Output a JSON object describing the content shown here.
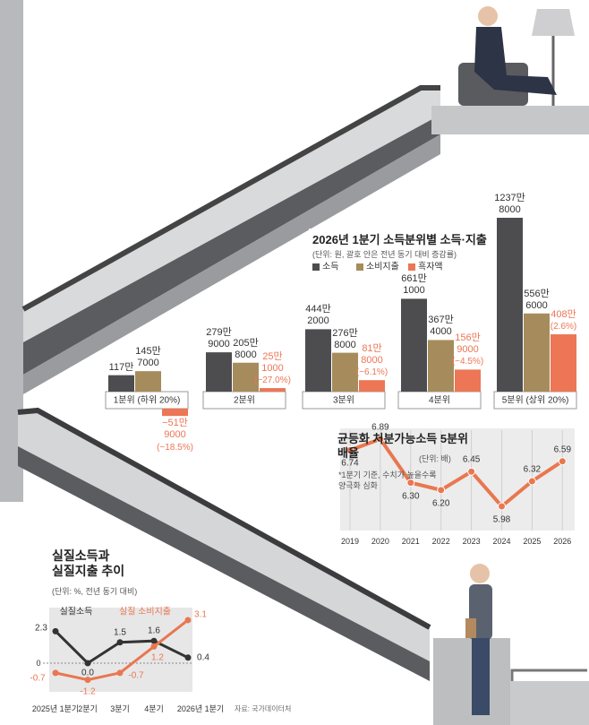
{
  "chart_data": [
    {
      "type": "bar",
      "title": "2026년 1분기 소득분위별 소득·지출",
      "subtitle": "(단위: 원, 괄호 안은 전년 동기 대비 증감률)",
      "categories": [
        "1분위 (하위 20%)",
        "2분위",
        "3분위",
        "4분위",
        "5분위 (상위 20%)"
      ],
      "series": [
        {
          "name": "소득",
          "color": "#4d4d50",
          "values": [
            1170000,
            2799000,
            4442000,
            6611000,
            12378000
          ],
          "value_labels": [
            "117만",
            "279만 9000",
            "444만 2000",
            "661만 1000",
            "1237만 8000"
          ]
        },
        {
          "name": "소비지출",
          "color": "#a68c5c",
          "values": [
            1457000,
            2058000,
            2768000,
            3674000,
            5566000
          ],
          "value_labels": [
            "145만 7000",
            "205만 8000",
            "276만 8000",
            "367만 4000",
            "556만 6000"
          ]
        },
        {
          "name": "흑자액",
          "color": "#ec7655",
          "values": [
            -519000,
            251000,
            818000,
            1569000,
            4080000
          ],
          "value_labels": [
            "−51만 9000",
            "25만 1000",
            "81만 8000",
            "156만 9000",
            "408만"
          ],
          "change_labels": [
            "(−18.5%)",
            "(−27.0%)",
            "(−6.1%)",
            "(−4.5%)",
            "(2.6%)"
          ]
        }
      ]
    },
    {
      "type": "line",
      "title": "균등화 처분가능소득 5분위 배율",
      "unit": "(단위: 배)",
      "note": "*1분기 기준, 수치가 높을수록 양극화 심화",
      "categories": [
        "2019",
        "2020",
        "2021",
        "2022",
        "2023",
        "2024",
        "2025",
        "2026"
      ],
      "grid": true,
      "series": [
        {
          "color": "#e9774f",
          "values": [
            6.74,
            6.89,
            6.3,
            6.2,
            6.45,
            5.98,
            6.32,
            6.59
          ],
          "value_labels": [
            "6.74",
            "6.89",
            "6.30",
            "6.20",
            "6.45",
            "5.98",
            "6.32",
            "6.59"
          ]
        }
      ]
    },
    {
      "type": "line",
      "title": "실질소득과 실질지출 추이",
      "unit": "(단위: %, 전년 동기 대비)",
      "source": "자료: 국가데이터처",
      "categories": [
        "2025년 1분기",
        "2분기",
        "3분기",
        "4분기",
        "2026년 1분기"
      ],
      "yticks": [
        0
      ],
      "series": [
        {
          "name": "실질소득",
          "color": "#333333",
          "values": [
            2.3,
            0,
            1.5,
            1.6,
            0.4
          ],
          "value_labels": [
            "2.3",
            "0.0",
            "1.5",
            "1.6",
            "0.4"
          ]
        },
        {
          "name": "실질 소비지출",
          "color": "#e9774f",
          "values": [
            -0.7,
            -1.2,
            -0.7,
            1.2,
            3.1
          ],
          "value_labels": [
            "-0.7",
            "-1.2",
            "-0.7",
            "1.2",
            "3.1"
          ]
        }
      ]
    }
  ]
}
